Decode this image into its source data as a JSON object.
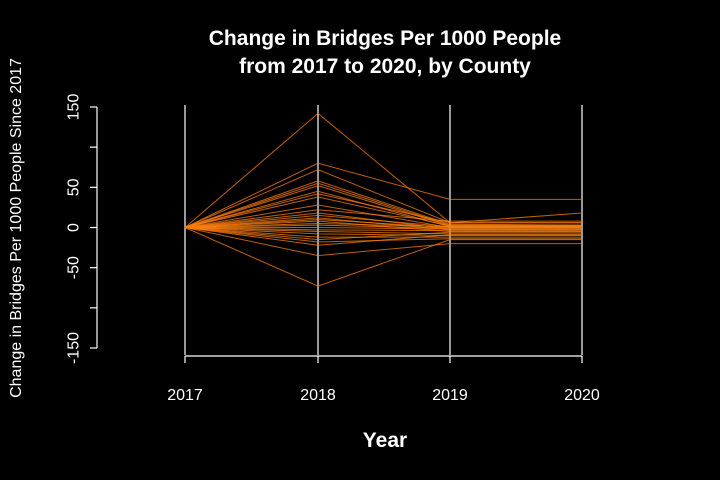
{
  "chart_data": {
    "type": "line",
    "title_line1": "Change in Bridges Per 1000 People",
    "title_line2": "from 2017 to 2020, by County",
    "xlabel": "Year",
    "ylabel": "Change in Bridges Per 1000 People Since 2017",
    "x": [
      2017,
      2018,
      2019,
      2020
    ],
    "x_tick_labels": [
      "2017",
      "2018",
      "2019",
      "2020"
    ],
    "y_ticks": [
      -150,
      -100,
      -50,
      0,
      50,
      100,
      150
    ],
    "y_tick_labels": [
      "-150",
      "",
      "-50",
      "0",
      "50",
      "",
      "150"
    ],
    "ylim": [
      -150,
      150
    ],
    "line_color": "#ff7f0e",
    "background": "#000000",
    "grid_color": "#ffffff",
    "series": [
      {
        "values": [
          0,
          142,
          6,
          6
        ]
      },
      {
        "values": [
          0,
          80,
          35,
          35
        ]
      },
      {
        "values": [
          0,
          72,
          6,
          6
        ]
      },
      {
        "values": [
          0,
          58,
          4,
          3
        ]
      },
      {
        "values": [
          0,
          55,
          3,
          3
        ]
      },
      {
        "values": [
          0,
          52,
          2,
          2
        ]
      },
      {
        "values": [
          0,
          45,
          1,
          1
        ]
      },
      {
        "values": [
          0,
          42,
          6,
          18
        ]
      },
      {
        "values": [
          0,
          38,
          2,
          2
        ]
      },
      {
        "values": [
          0,
          28,
          0,
          0
        ]
      },
      {
        "values": [
          0,
          22,
          8,
          8
        ]
      },
      {
        "values": [
          0,
          18,
          -2,
          -2
        ]
      },
      {
        "values": [
          0,
          15,
          1,
          1
        ]
      },
      {
        "values": [
          0,
          12,
          -3,
          -3
        ]
      },
      {
        "values": [
          0,
          10,
          0,
          0
        ]
      },
      {
        "values": [
          0,
          8,
          -5,
          -5
        ]
      },
      {
        "values": [
          0,
          5,
          1,
          1
        ]
      },
      {
        "values": [
          0,
          3,
          -1,
          -1
        ]
      },
      {
        "values": [
          0,
          0,
          -2,
          -2
        ]
      },
      {
        "values": [
          0,
          -3,
          -4,
          -4
        ]
      },
      {
        "values": [
          0,
          -5,
          -8,
          -8
        ]
      },
      {
        "values": [
          0,
          -8,
          -10,
          -10
        ]
      },
      {
        "values": [
          0,
          -12,
          -12,
          -12
        ]
      },
      {
        "values": [
          0,
          -15,
          -6,
          -6
        ]
      },
      {
        "values": [
          0,
          -18,
          -14,
          -14
        ]
      },
      {
        "values": [
          0,
          -22,
          -9,
          -9
        ]
      },
      {
        "values": [
          0,
          -35,
          -20,
          -20
        ]
      },
      {
        "values": [
          0,
          -73,
          -15,
          -15
        ]
      }
    ]
  }
}
